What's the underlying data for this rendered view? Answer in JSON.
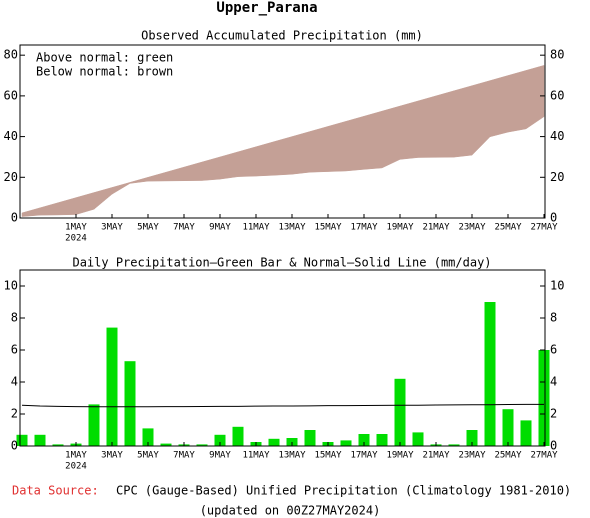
{
  "title": "Upper_Parana",
  "chart_data": [
    {
      "type": "area_diff",
      "title": "Observed Accumulated Precipitation (mm)",
      "annotations": [
        "Above normal: green",
        "Below normal: brown"
      ],
      "above_color": "#00dd00",
      "below_color": "#c4a096",
      "categories": [
        null,
        null,
        null,
        "1MAY",
        null,
        "3MAY",
        null,
        "5MAY",
        null,
        "7MAY",
        null,
        "9MAY",
        null,
        "11MAY",
        null,
        "13MAY",
        null,
        "15MAY",
        null,
        "17MAY",
        null,
        "19MAY",
        null,
        "21MAY",
        null,
        "23MAY",
        null,
        "25MAY",
        null,
        "27MAY"
      ],
      "year_label": "2024",
      "series": [
        {
          "values": [
            0.7,
            1.4,
            1.5,
            1.7,
            4.3,
            11.7,
            17,
            18.1,
            18.2,
            18.3,
            18.4,
            19.1,
            20.3,
            20.6,
            21,
            21.5,
            22.5,
            22.8,
            23.1,
            23.9,
            24.6,
            28.8,
            29.7,
            29.8,
            29.9,
            30.9,
            39.9,
            42.2,
            43.8,
            49.8
          ]
        },
        {
          "values": [
            2.5,
            5,
            7.5,
            10,
            12.5,
            15,
            17.5,
            20,
            22.5,
            25,
            27.5,
            30,
            32.5,
            35,
            37.5,
            40,
            42.5,
            45,
            47.5,
            50,
            52.5,
            55,
            57.5,
            60,
            62.5,
            65,
            67.5,
            70,
            72.5,
            75
          ]
        }
      ],
      "ylim": [
        0,
        85
      ],
      "yticks": [
        0,
        20,
        40,
        60,
        80
      ]
    },
    {
      "type": "bar_line",
      "title": "Daily Precipitation—Green Bar & Normal—Solid Line (mm/day)",
      "categories": [
        null,
        null,
        null,
        "1MAY",
        null,
        "3MAY",
        null,
        "5MAY",
        null,
        "7MAY",
        null,
        "9MAY",
        null,
        "11MAY",
        null,
        "13MAY",
        null,
        "15MAY",
        null,
        "17MAY",
        null,
        "19MAY",
        null,
        "21MAY",
        null,
        "23MAY",
        null,
        "25MAY",
        null,
        "27MAY"
      ],
      "year_label": "2024",
      "series": [
        {
          "kind": "bar",
          "color": "#00dd00",
          "values": [
            0.7,
            0.7,
            0.1,
            0.15,
            2.6,
            7.4,
            5.3,
            1.1,
            0.15,
            0.1,
            0.1,
            0.7,
            1.2,
            0.25,
            0.45,
            0.5,
            1.0,
            0.25,
            0.35,
            0.75,
            0.75,
            4.2,
            0.85,
            0.1,
            0.1,
            1.0,
            9.0,
            2.3,
            1.6,
            6.0
          ]
        },
        {
          "kind": "line",
          "color": "#000000",
          "values": [
            2.55,
            2.5,
            2.48,
            2.46,
            2.45,
            2.45,
            2.45,
            2.45,
            2.46,
            2.46,
            2.47,
            2.48,
            2.48,
            2.49,
            2.5,
            2.5,
            2.51,
            2.52,
            2.52,
            2.53,
            2.54,
            2.55,
            2.55,
            2.56,
            2.57,
            2.58,
            2.58,
            2.59,
            2.6,
            2.6
          ]
        }
      ],
      "ylim": [
        0,
        11
      ],
      "yticks": [
        0,
        2,
        4,
        6,
        8,
        10
      ]
    }
  ],
  "footer": {
    "source_label": "Data Source:",
    "source": "CPC (Gauge-Based) Unified Precipitation (Climatology 1981-2010)",
    "updated": "(updated on 00Z27MAY2024)"
  }
}
